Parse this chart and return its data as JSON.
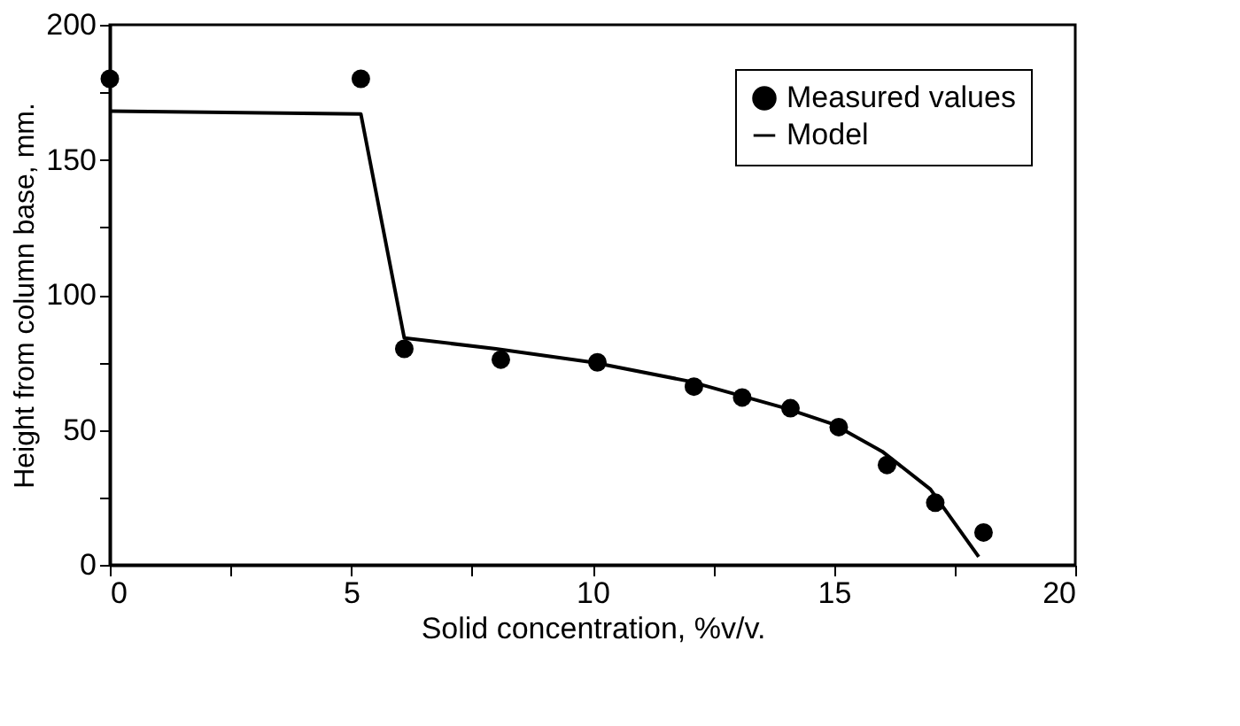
{
  "chart_data": {
    "type": "scatter",
    "xlabel": "Solid concentration, %v/v.",
    "ylabel": "Height from column base, mm.",
    "xlim": [
      0,
      20
    ],
    "ylim": [
      0,
      200
    ],
    "xticks": [
      0,
      {
        "value": 2.5,
        "label": null
      },
      5,
      {
        "value": 7.5,
        "label": null
      },
      10,
      {
        "value": 12.5,
        "label": null
      },
      15,
      {
        "value": 17.5,
        "label": null
      },
      20
    ],
    "yticks": [
      0,
      {
        "value": 25,
        "label": null
      },
      50,
      {
        "value": 75,
        "label": null
      },
      100,
      {
        "value": 125,
        "label": null
      },
      150,
      {
        "value": 175,
        "label": null
      },
      200
    ],
    "grid": false,
    "legend": "top right",
    "series": [
      {
        "name": "Measured values",
        "type": "scatter",
        "marker": "circle",
        "color": "#000000",
        "x": [
          0,
          5.2,
          6.1,
          8.1,
          10.1,
          12.1,
          13.1,
          14.1,
          15.1,
          16.1,
          17.1,
          18.1
        ],
        "values": [
          180,
          180,
          80,
          76,
          75,
          66,
          62,
          58,
          51,
          37,
          23,
          12
        ]
      },
      {
        "name": "Model",
        "type": "line",
        "line_style": "solid",
        "color": "#000000",
        "x": [
          0,
          5.2,
          6.1,
          8,
          10,
          12,
          14,
          15,
          16,
          17,
          18
        ],
        "values": [
          168,
          167,
          84,
          80,
          75,
          68,
          58,
          52,
          42,
          28,
          3
        ]
      }
    ]
  }
}
